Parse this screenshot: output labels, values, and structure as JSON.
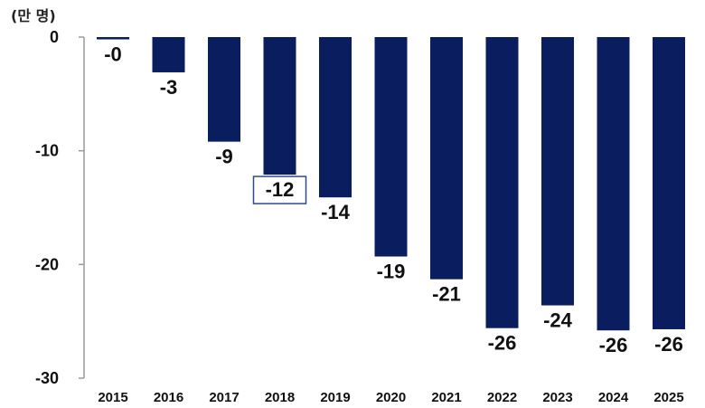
{
  "chart_data": {
    "type": "bar",
    "title": "",
    "unit_label": "(만 명)",
    "xlabel": "",
    "ylabel": "",
    "categories": [
      "2015",
      "2016",
      "2017",
      "2018",
      "2019",
      "2020",
      "2021",
      "2022",
      "2023",
      "2024",
      "2025"
    ],
    "values": [
      -0.2,
      -3.1,
      -9.2,
      -12.1,
      -14.1,
      -19.3,
      -21.3,
      -25.6,
      -23.6,
      -25.8,
      -25.7
    ],
    "value_labels": [
      "-0",
      "-3",
      "-9",
      "-12",
      "-14",
      "-19",
      "-21",
      "-26",
      "-24",
      "-26",
      "-26"
    ],
    "highlighted_label": "2018",
    "y_ticks": [
      0,
      -10,
      -20,
      -30
    ],
    "y_tick_labels": [
      "0",
      "-10",
      "-20",
      "-30"
    ],
    "ylim": [
      -30,
      0
    ],
    "bar_color": "#0a1d5e",
    "highlight_border_color": "#2e4a8c",
    "grid": false,
    "legend": "none"
  }
}
